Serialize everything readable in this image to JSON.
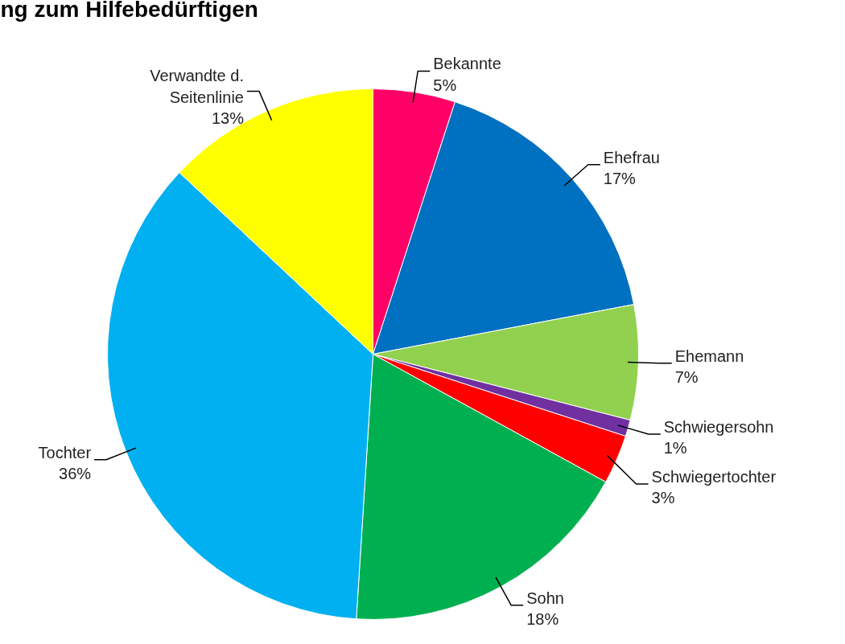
{
  "chart_data": {
    "type": "pie",
    "title": "ng zum Hilfebedürftigen",
    "categories": [
      "Bekannte",
      "Ehefrau",
      "Ehemann",
      "Schwiegersohn",
      "Schwiegertochter",
      "Sohn",
      "Tochter",
      "Verwandte d.\nSeitenlinie"
    ],
    "values": [
      5,
      17,
      7,
      1,
      3,
      18,
      36,
      13
    ],
    "value_labels": [
      "5%",
      "17%",
      "7%",
      "1%",
      "3%",
      "18%",
      "36%",
      "13%"
    ],
    "colors": [
      "#ff0066",
      "#0070c0",
      "#92d050",
      "#7030a0",
      "#ff0000",
      "#00b050",
      "#00b0f0",
      "#ffff00"
    ]
  }
}
